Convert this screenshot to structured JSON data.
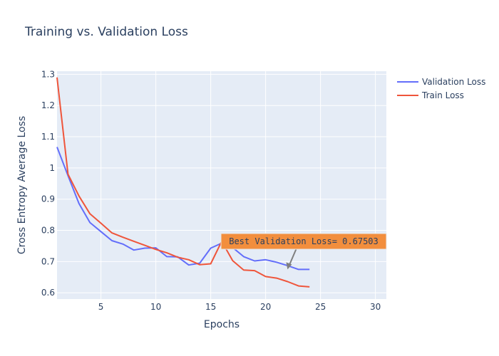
{
  "chart_data": {
    "type": "line",
    "title": "Training vs. Validation Loss",
    "xlabel": "Epochs",
    "ylabel": "Cross Entropy Average Loss",
    "xlim": [
      1,
      31
    ],
    "ylim": [
      0.58,
      1.31
    ],
    "xticks": [
      5,
      10,
      15,
      20,
      25,
      30
    ],
    "xtick_labels": [
      "5",
      "10",
      "15",
      "20",
      "25",
      "30"
    ],
    "yticks": [
      0.6,
      0.7,
      0.8,
      0.9,
      1.0,
      1.1,
      1.2,
      1.3
    ],
    "ytick_labels": [
      "0.6",
      "0.7",
      "0.8",
      "0.9",
      "1",
      "1.1",
      "1.2",
      "1.3"
    ],
    "grid": true,
    "legend_position": "top-right",
    "series": [
      {
        "name": "Validation Loss",
        "color": "#636efa",
        "x": [
          1,
          2,
          3,
          4,
          5,
          6,
          7,
          8,
          9,
          10,
          11,
          12,
          13,
          14,
          15,
          16,
          17,
          18,
          19,
          20,
          21,
          22,
          23,
          24
        ],
        "y": [
          1.067,
          0.975,
          0.886,
          0.825,
          0.796,
          0.767,
          0.756,
          0.737,
          0.743,
          0.744,
          0.716,
          0.715,
          0.689,
          0.695,
          0.743,
          0.759,
          0.745,
          0.716,
          0.702,
          0.706,
          0.698,
          0.687,
          0.675,
          0.675
        ]
      },
      {
        "name": "Train Loss",
        "color": "#ef553b",
        "x": [
          1,
          2,
          3,
          4,
          5,
          6,
          7,
          8,
          9,
          10,
          11,
          12,
          13,
          14,
          15,
          16,
          17,
          18,
          19,
          20,
          21,
          22,
          23,
          24
        ],
        "y": [
          1.29,
          0.98,
          0.91,
          0.853,
          0.823,
          0.792,
          0.778,
          0.765,
          0.752,
          0.739,
          0.728,
          0.714,
          0.706,
          0.69,
          0.693,
          0.765,
          0.703,
          0.673,
          0.671,
          0.652,
          0.647,
          0.636,
          0.622,
          0.619
        ]
      }
    ],
    "annotation": {
      "text": "Best Validation Loss= 0.67503",
      "x": 22,
      "y": 0.675,
      "bgcolor": "#f28e3d"
    }
  }
}
